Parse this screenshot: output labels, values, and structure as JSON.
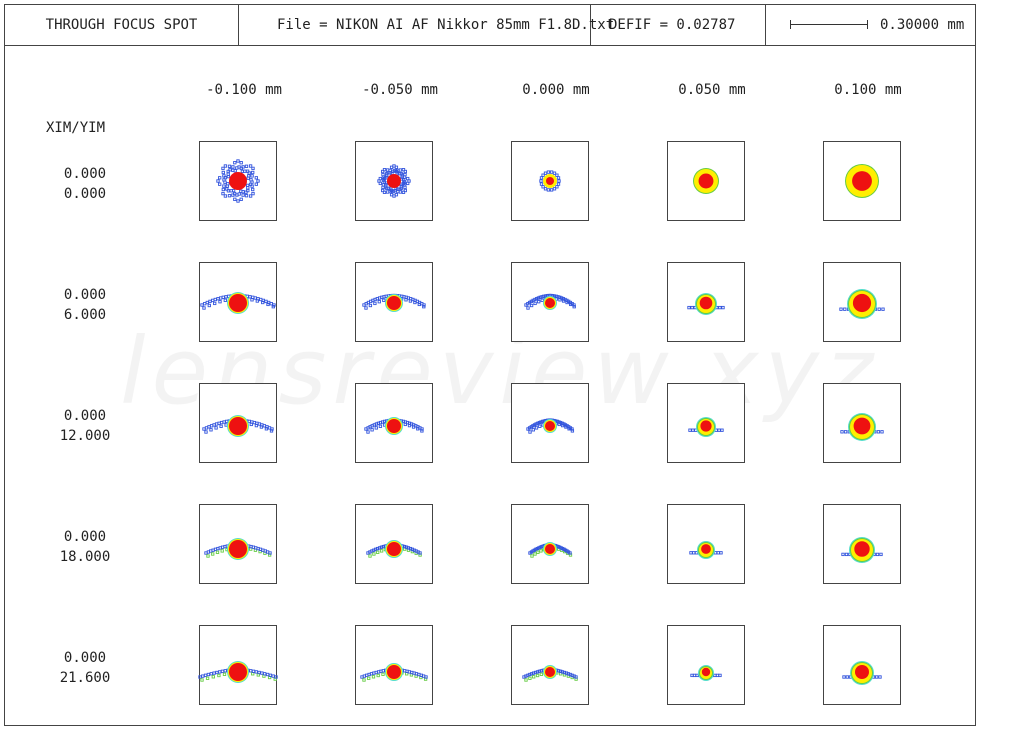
{
  "header": {
    "title": "THROUGH FOCUS SPOT",
    "file_text": "File = NIKON AI AF Nikkor 85mm F1.8D.txt",
    "defocus_text": "DEFIF = 0.02787",
    "scale_text": "0.30000 mm"
  },
  "watermark": "lensreview.xyz",
  "focus_labels": [
    "-0.100  mm",
    "-0.050  mm",
    "0.000  mm",
    "0.050  mm",
    "0.100  mm"
  ],
  "field_header": "XIM/YIM",
  "fields": [
    {
      "xim": "0.000",
      "yim": "0.000"
    },
    {
      "xim": "0.000",
      "yim": "6.000"
    },
    {
      "xim": "0.000",
      "yim": "12.000"
    },
    {
      "xim": "0.000",
      "yim": "18.000"
    },
    {
      "xim": "0.000",
      "yim": "21.600"
    }
  ],
  "colors": {
    "blue": "#3355dd",
    "red": "#ee1111",
    "yellow": "#ffee00",
    "green": "#66cc44",
    "cyan": "#55ddcc"
  }
}
